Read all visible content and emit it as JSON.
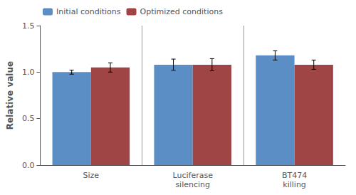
{
  "chart_data": {
    "type": "bar",
    "categories": [
      "Size",
      "Luciferase\nsilencing",
      "BT474\nkilling"
    ],
    "series": [
      {
        "name": "Initial conditions",
        "color": "#5b8ec4",
        "values": [
          1.0,
          1.08,
          1.18
        ],
        "errors": [
          0.022,
          0.06,
          0.05
        ]
      },
      {
        "name": "Optimized conditions",
        "color": "#a04545",
        "values": [
          1.05,
          1.08,
          1.08
        ],
        "errors": [
          0.05,
          0.065,
          0.05
        ]
      }
    ],
    "ylabel": "Relative value",
    "ylim": [
      0.0,
      1.5
    ],
    "yticks": [
      {
        "value": 0.0,
        "label": "0.0"
      },
      {
        "value": 0.5,
        "label": "0.5"
      },
      {
        "value": 1.0,
        "label": "1.0"
      },
      {
        "value": 1.5,
        "label": "1.5"
      }
    ],
    "legend": "upper left",
    "grid": false
  }
}
